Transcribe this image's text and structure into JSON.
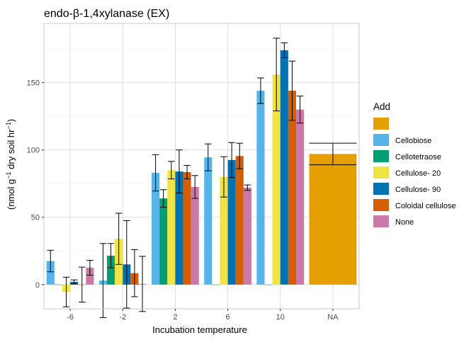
{
  "chart_data": {
    "type": "bar",
    "title": "endo-β-1,4xylanase (EX)",
    "xlabel": "Incubation temperature",
    "ylabel_main": "(nmol g",
    "ylabel_sup1": "−1",
    "ylabel_mid": " dry soil hr",
    "ylabel_sup2": "−1",
    "ylabel_end": ")",
    "ylim": [
      -18,
      194
    ],
    "yticks": [
      0,
      50,
      100,
      150
    ],
    "grid": true,
    "legend_position": "right",
    "legend_title": "Add",
    "categories": [
      "-6",
      "-2",
      "2",
      "6",
      "10",
      "NA"
    ],
    "series": [
      {
        "name": "",
        "color": "#E69F00",
        "values": [
          null,
          null,
          null,
          null,
          null,
          97
        ],
        "err": [
          null,
          null,
          null,
          null,
          null,
          8
        ]
      },
      {
        "name": "Cellobiose",
        "color": "#56B4E9",
        "values": [
          17.5,
          3,
          83,
          94.5,
          144,
          null
        ],
        "err": [
          8,
          27.5,
          13.5,
          10,
          9.5,
          null
        ]
      },
      {
        "name": "Cellotetraose",
        "color": "#009E73",
        "values": [
          0,
          21.5,
          64,
          0,
          0,
          null
        ],
        "err": [
          0,
          9,
          6.5,
          0,
          0,
          null
        ]
      },
      {
        "name": "Cellulose- 20",
        "color": "#F0E442",
        "values": [
          -5.5,
          34,
          85,
          80,
          156,
          null
        ],
        "err": [
          11,
          19,
          6.5,
          15,
          27,
          null
        ]
      },
      {
        "name": "Cellulose- 90",
        "color": "#0072B2",
        "values": [
          2,
          15,
          84,
          92.5,
          174,
          null
        ],
        "err": [
          1.5,
          32.5,
          16,
          13,
          5.5,
          null
        ]
      },
      {
        "name": "Coloidal cellulose",
        "color": "#D55E00",
        "values": [
          0,
          8.5,
          83.5,
          95.5,
          144,
          null
        ],
        "err": [
          13,
          17.5,
          5,
          9.5,
          22,
          null
        ]
      },
      {
        "name": "None",
        "color": "#CC79A7",
        "values": [
          12.5,
          0.5,
          72.5,
          72,
          130,
          null
        ],
        "err": [
          5.5,
          20.5,
          8.5,
          2,
          10,
          null
        ]
      }
    ]
  }
}
